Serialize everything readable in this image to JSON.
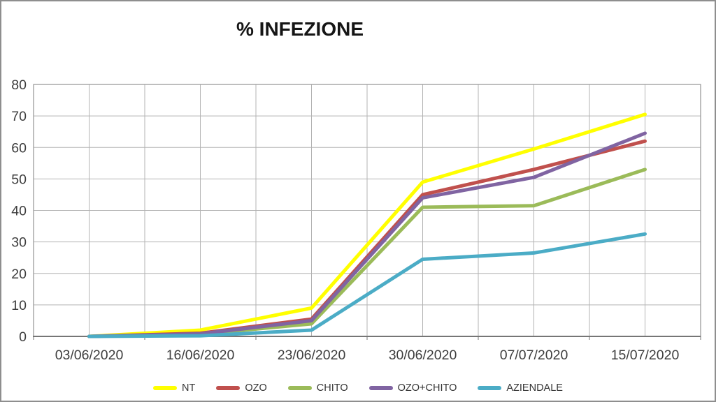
{
  "title": "% INFEZIONE",
  "chart_data": {
    "type": "line",
    "title": "% INFEZIONE",
    "categories": [
      "03/06/2020",
      "16/06/2020",
      "23/06/2020",
      "30/06/2020",
      "07/07/2020",
      "15/07/2020"
    ],
    "series": [
      {
        "name": "NT",
        "color": "#FFFF00",
        "values": [
          0,
          2,
          9,
          49,
          59.5,
          70.5
        ]
      },
      {
        "name": "OZO",
        "color": "#C0504D",
        "values": [
          0,
          1,
          5.5,
          45,
          53,
          62
        ]
      },
      {
        "name": "CHITO",
        "color": "#9BBB59",
        "values": [
          0,
          0.7,
          4,
          41,
          41.5,
          53
        ]
      },
      {
        "name": "OZO+CHITO",
        "color": "#8064A2",
        "values": [
          0,
          0.8,
          5,
          44,
          50.5,
          64.5
        ]
      },
      {
        "name": "AZIENDALE",
        "color": "#4BACC6",
        "values": [
          0,
          0.2,
          2,
          24.5,
          26.5,
          32.5
        ]
      }
    ],
    "xlabel": "",
    "ylabel": "",
    "ylim": [
      0,
      80
    ],
    "ytick_step": 10,
    "grid": "both",
    "legend_position": "bottom"
  },
  "colors": {
    "gridline": "#b3b3b3",
    "plot_border": "#9b9b9b",
    "axis": "#767676",
    "text": "#3d3d3d",
    "outer_border": "#8e8e8e",
    "title_text": "#151515"
  }
}
